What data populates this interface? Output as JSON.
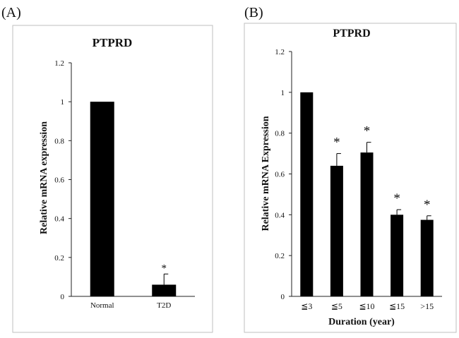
{
  "panel_a_label": "(A)",
  "panel_b_label": "(B)",
  "chart_data": [
    {
      "type": "bar",
      "title": "PTPRD",
      "categories": [
        "Normal",
        "T2D"
      ],
      "values": [
        1.0,
        0.06
      ],
      "errors": [
        0.0,
        0.055
      ],
      "significance": [
        "",
        "*"
      ],
      "xlabel": "",
      "ylabel": "Relative mRNA expression",
      "ylim": [
        0,
        1.2
      ],
      "yticks": [
        "0",
        "0.2",
        "0.4",
        "0.6",
        "0.8",
        "1",
        "1.2"
      ],
      "grid": false
    },
    {
      "type": "bar",
      "title": "PTPRD",
      "categories": [
        "≦3",
        "≦5",
        "≦10",
        "≦15",
        ">15"
      ],
      "values": [
        1.0,
        0.64,
        0.705,
        0.4,
        0.375
      ],
      "errors": [
        0.0,
        0.06,
        0.05,
        0.025,
        0.02
      ],
      "significance": [
        "",
        "*",
        "*",
        "*",
        "*"
      ],
      "xlabel": "Duration (year)",
      "ylabel": "Relative mRNA Expression",
      "ylim": [
        0,
        1.2
      ],
      "yticks": [
        "0",
        "0.2",
        "0.4",
        "0.6",
        "0.8",
        "1",
        "1.2"
      ],
      "grid": false
    }
  ]
}
